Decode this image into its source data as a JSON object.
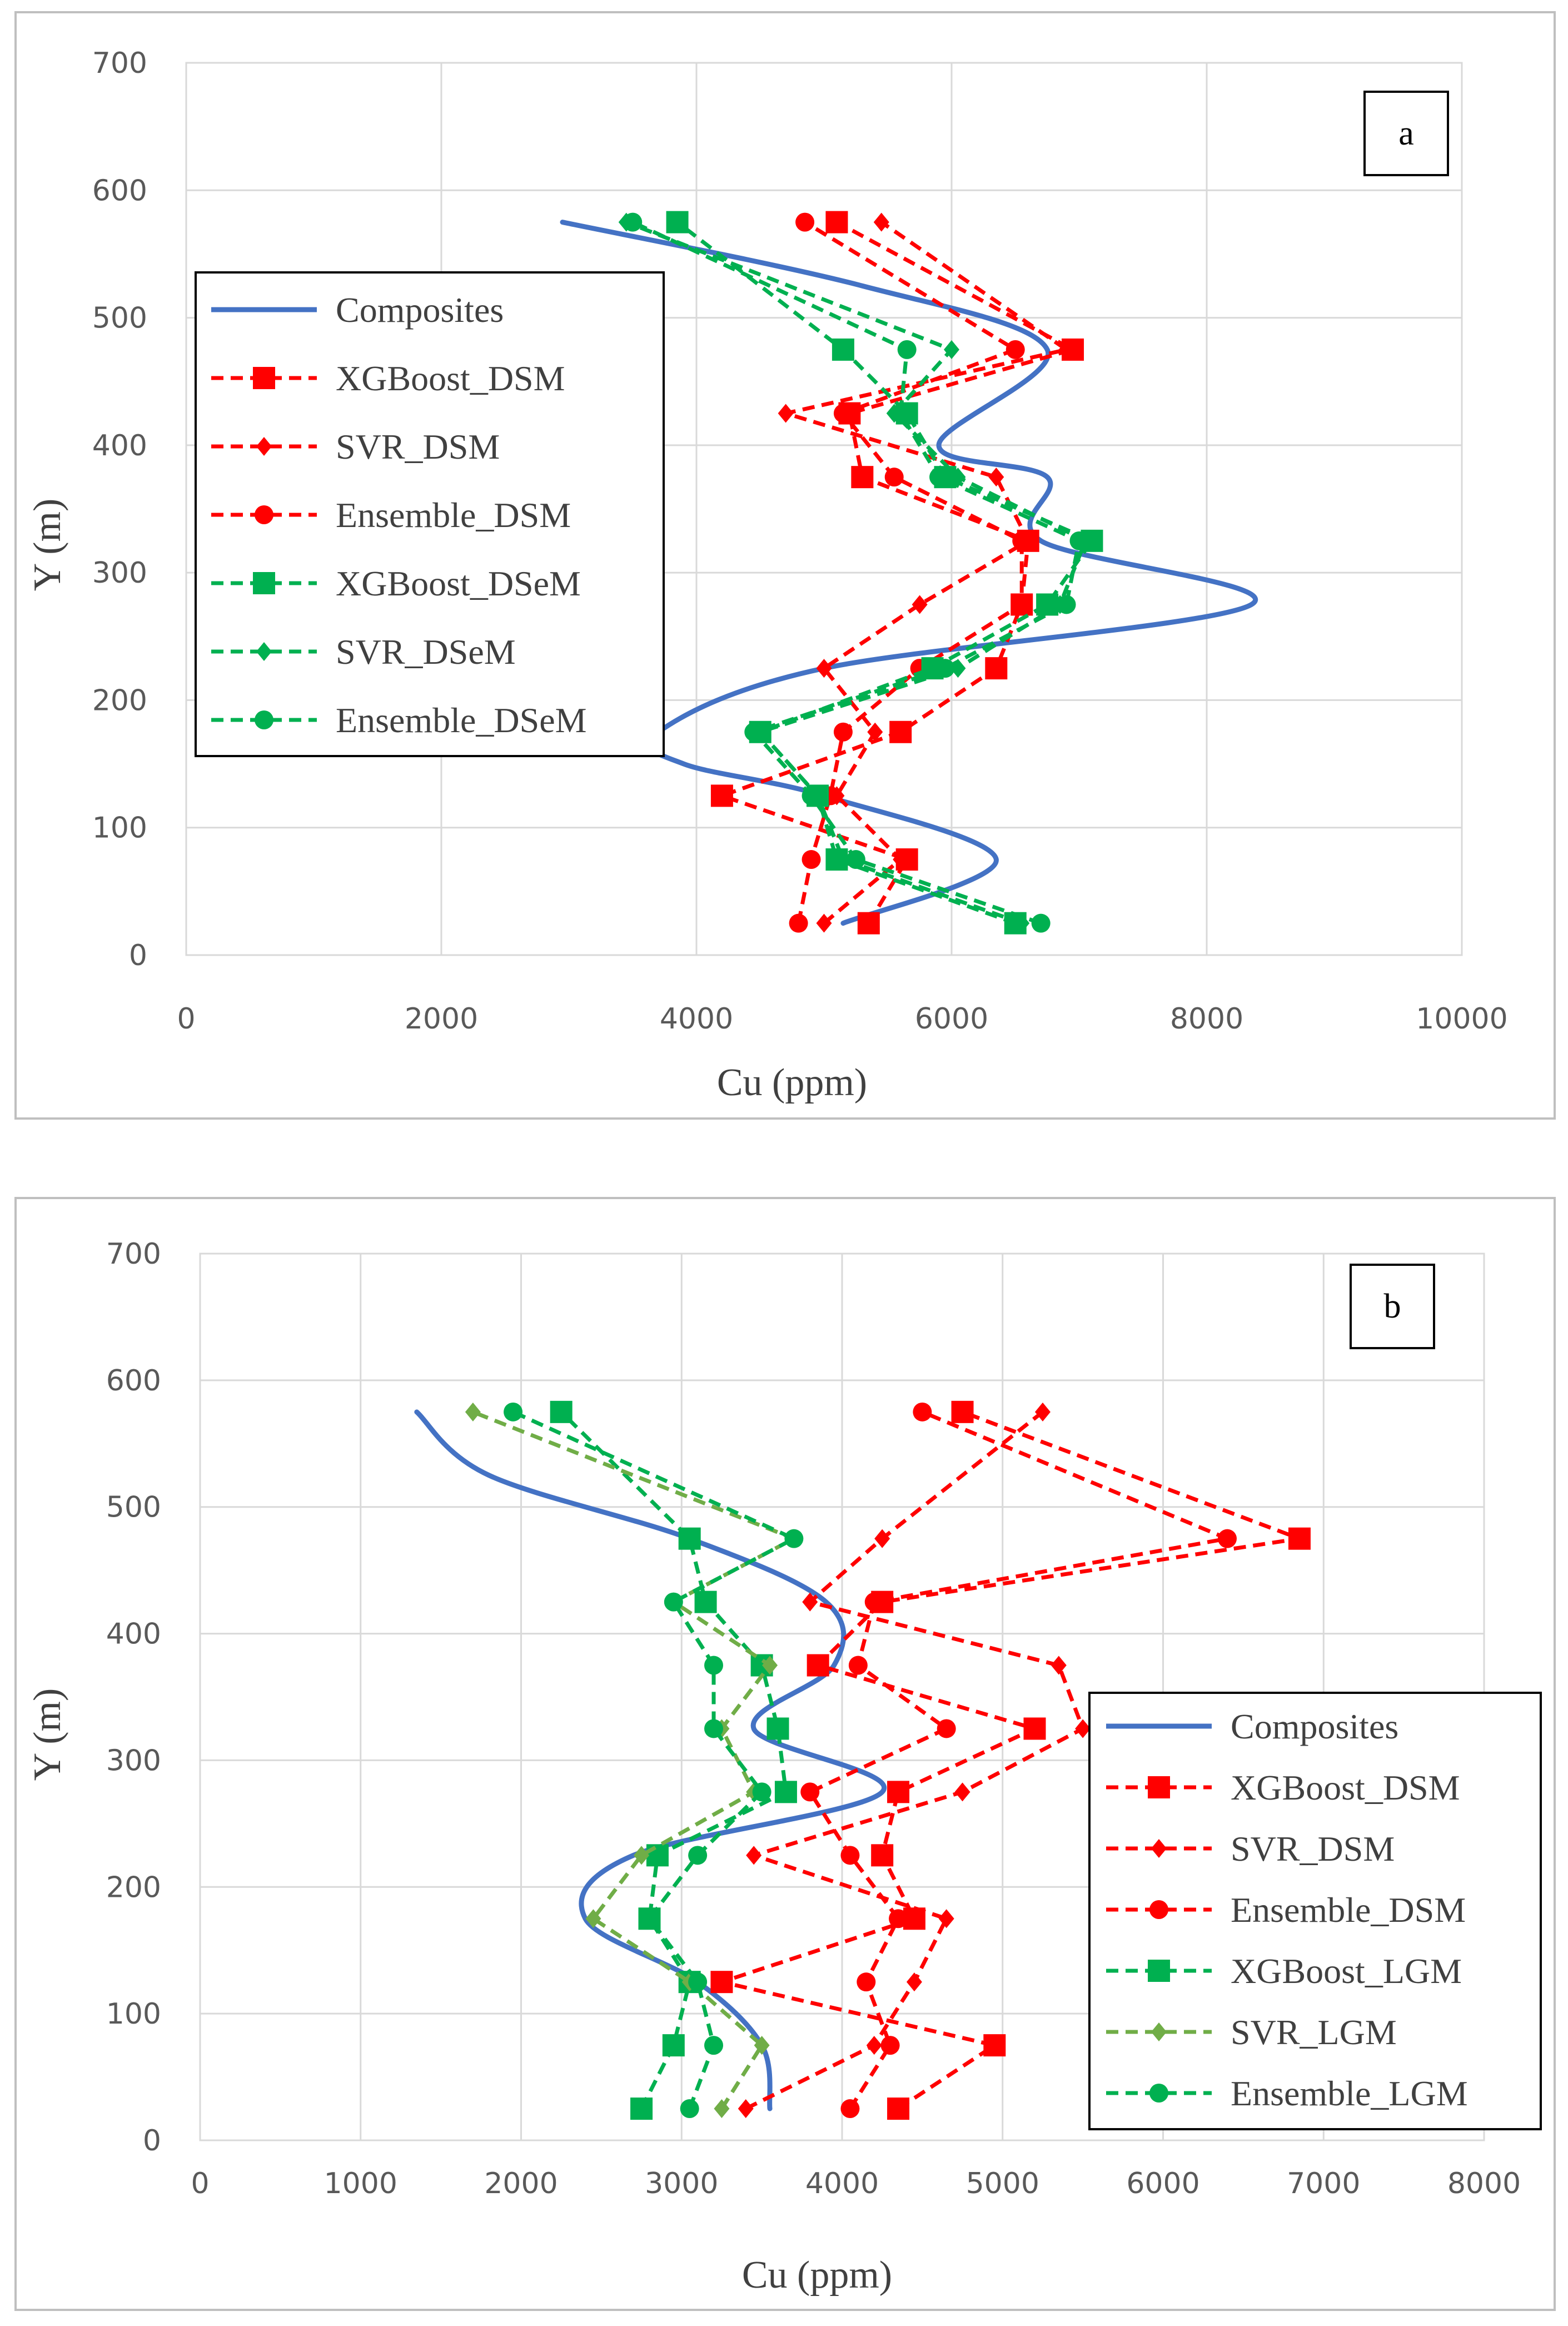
{
  "colors": {
    "composites": "#4472C4",
    "dsm": "#FF0000",
    "green": "#00B050",
    "svr_lgm": "#70AD47",
    "grid": "#D9D9D9",
    "frame": "#BFBFBF"
  },
  "chart_data": [
    {
      "type": "line",
      "panel": "a",
      "xlabel": "Cu (ppm)",
      "ylabel": "Y (m)",
      "xlim": [
        0,
        10000
      ],
      "ylim": [
        0,
        700
      ],
      "xticks": [
        "0",
        "2000",
        "4000",
        "6000",
        "8000",
        "10000"
      ],
      "yticks": [
        "0",
        "100",
        "200",
        "300",
        "400",
        "500",
        "600",
        "700"
      ],
      "legend_position": "left",
      "series": [
        {
          "name": "Composites",
          "style": "solid",
          "color": "composites",
          "marker": "none",
          "smooth": true,
          "x": [
            5150,
            6350,
            5000,
            3900,
            3700,
            5000,
            8350,
            6700,
            6750,
            5900,
            6750,
            5300,
            2950
          ],
          "y": [
            25,
            75,
            125,
            150,
            175,
            225,
            275,
            325,
            375,
            400,
            475,
            525,
            575
          ]
        },
        {
          "name": "XGBoost_DSM",
          "style": "dashed",
          "color": "dsm",
          "marker": "square",
          "x": [
            5350,
            5650,
            4200,
            5600,
            6350,
            6550,
            6600,
            5300,
            5200,
            6950,
            5100
          ],
          "y": [
            25,
            75,
            125,
            175,
            225,
            275,
            325,
            375,
            425,
            475,
            575
          ]
        },
        {
          "name": "SVR_DSM",
          "style": "dashed",
          "color": "dsm",
          "marker": "diamond",
          "x": [
            5000,
            5600,
            5100,
            5400,
            5000,
            5750,
            6600,
            6350,
            4700,
            6900,
            5450
          ],
          "y": [
            25,
            75,
            125,
            175,
            225,
            275,
            325,
            375,
            425,
            475,
            575
          ]
        },
        {
          "name": "Ensemble_DSM",
          "style": "dashed",
          "color": "dsm",
          "marker": "circle",
          "x": [
            4800,
            4900,
            5050,
            5150,
            5750,
            6550,
            6550,
            5550,
            5150,
            6500,
            4850
          ],
          "y": [
            25,
            75,
            125,
            175,
            225,
            275,
            325,
            375,
            425,
            475,
            575
          ]
        },
        {
          "name": "XGBoost_DSeM",
          "style": "dashed",
          "color": "green",
          "marker": "square",
          "x": [
            6500,
            5100,
            4950,
            4500,
            5850,
            6750,
            7100,
            5950,
            5650,
            5150,
            3850
          ],
          "y": [
            25,
            75,
            125,
            175,
            225,
            275,
            325,
            375,
            425,
            475,
            575
          ]
        },
        {
          "name": "SVR_DSeM",
          "style": "dashed",
          "color": "green",
          "marker": "diamond",
          "x": [
            6550,
            5150,
            4950,
            4500,
            6050,
            6850,
            7050,
            6050,
            5550,
            6000,
            3450
          ],
          "y": [
            25,
            75,
            125,
            175,
            225,
            275,
            325,
            375,
            425,
            475,
            575
          ]
        },
        {
          "name": "Ensemble_DSeM",
          "style": "dashed",
          "color": "green",
          "marker": "circle",
          "x": [
            6700,
            5250,
            4900,
            4450,
            5950,
            6900,
            7000,
            5900,
            5600,
            5650,
            3500
          ],
          "y": [
            25,
            75,
            125,
            175,
            225,
            275,
            325,
            375,
            425,
            475,
            575
          ]
        }
      ]
    },
    {
      "type": "line",
      "panel": "b",
      "xlabel": "Cu (ppm)",
      "ylabel": "Y (m)",
      "xlim": [
        0,
        8000
      ],
      "ylim": [
        0,
        700
      ],
      "xticks": [
        "0",
        "1000",
        "2000",
        "3000",
        "4000",
        "5000",
        "6000",
        "7000",
        "8000"
      ],
      "yticks": [
        "0",
        "100",
        "200",
        "300",
        "400",
        "500",
        "600",
        "700"
      ],
      "legend_position": "bottom-right",
      "series": [
        {
          "name": "Composites",
          "style": "solid",
          "color": "composites",
          "marker": "none",
          "smooth": true,
          "x": [
            3550,
            3500,
            3100,
            2400,
            2700,
            4250,
            3450,
            3950,
            3900,
            3050,
            1800,
            1350
          ],
          "y": [
            25,
            75,
            125,
            175,
            225,
            275,
            325,
            375,
            425,
            475,
            525,
            575
          ]
        },
        {
          "name": "XGBoost_DSM",
          "style": "dashed",
          "color": "dsm",
          "marker": "square",
          "x": [
            4350,
            4950,
            3250,
            4450,
            4250,
            4350,
            5200,
            3850,
            4250,
            6850,
            4750
          ],
          "y": [
            25,
            75,
            125,
            175,
            225,
            275,
            325,
            375,
            425,
            475,
            575
          ]
        },
        {
          "name": "SVR_DSM",
          "style": "dashed",
          "color": "dsm",
          "marker": "diamond",
          "x": [
            3400,
            4200,
            4450,
            4650,
            3450,
            4750,
            5500,
            5350,
            3800,
            4250,
            5250
          ],
          "y": [
            25,
            75,
            125,
            175,
            225,
            275,
            325,
            375,
            425,
            475,
            575
          ]
        },
        {
          "name": "Ensemble_DSM",
          "style": "dashed",
          "color": "dsm",
          "marker": "circle",
          "x": [
            4050,
            4300,
            4150,
            4350,
            4050,
            3800,
            4650,
            4100,
            4200,
            6400,
            4500
          ],
          "y": [
            25,
            75,
            125,
            175,
            225,
            275,
            325,
            375,
            425,
            475,
            575
          ]
        },
        {
          "name": "XGBoost_LGM",
          "style": "dashed",
          "color": "green",
          "marker": "square",
          "x": [
            2750,
            2950,
            3050,
            2800,
            2850,
            3650,
            3600,
            3500,
            3150,
            3050,
            2250
          ],
          "y": [
            25,
            75,
            125,
            175,
            225,
            275,
            325,
            375,
            425,
            475,
            575
          ]
        },
        {
          "name": "SVR_LGM",
          "style": "dashed",
          "color": "svr_lgm",
          "marker": "diamond",
          "x": [
            3250,
            3500,
            3050,
            2450,
            2750,
            3450,
            3250,
            3550,
            2950,
            3700,
            1700
          ],
          "y": [
            25,
            75,
            125,
            175,
            225,
            275,
            325,
            375,
            425,
            475,
            575
          ]
        },
        {
          "name": "Ensemble_LGM",
          "style": "dashed",
          "color": "green",
          "marker": "circle",
          "x": [
            3050,
            3200,
            3100,
            2800,
            3100,
            3500,
            3200,
            3200,
            2950,
            3700,
            1950
          ],
          "y": [
            25,
            75,
            125,
            175,
            225,
            275,
            325,
            375,
            425,
            475,
            575
          ]
        }
      ]
    }
  ]
}
